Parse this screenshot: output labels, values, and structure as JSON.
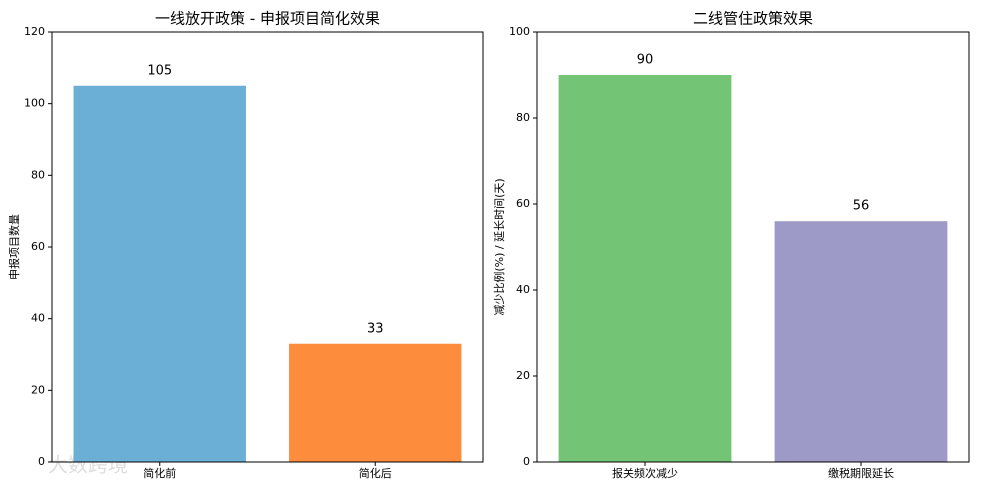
{
  "chart_data": [
    {
      "type": "bar",
      "title": "一线放开政策 - 申报项目简化效果",
      "y_label": "申报项目数量",
      "categories": [
        "简化前",
        "简化后"
      ],
      "values": [
        105,
        33
      ],
      "colors": [
        "#6baed6",
        "#fd8d3c"
      ],
      "ylim": [
        0,
        120
      ],
      "yticks": [
        0,
        20,
        40,
        60,
        80,
        100,
        120
      ]
    },
    {
      "type": "bar",
      "title": "二线管住政策效果",
      "y_label": "减少比例(%) / 延长时间(天)",
      "categories": [
        "报关频次减少",
        "缴税期限延长"
      ],
      "values": [
        90,
        56
      ],
      "colors": [
        "#74c476",
        "#9e9ac8"
      ],
      "ylim": [
        0,
        100
      ],
      "yticks": [
        0,
        20,
        40,
        60,
        80,
        100
      ]
    }
  ],
  "watermark": "大数跨境"
}
